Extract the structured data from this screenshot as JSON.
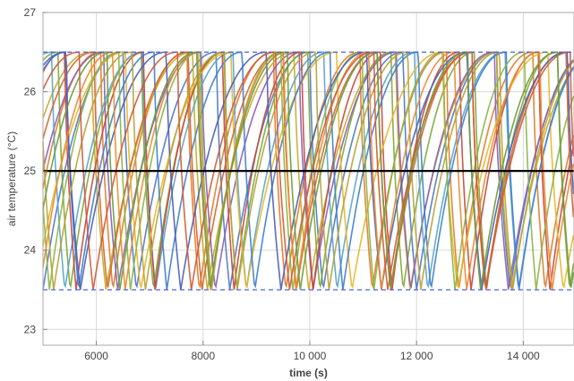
{
  "chart_data": {
    "type": "line",
    "title": "",
    "xlabel": "time (s)",
    "ylabel": "air temperature  (°C)",
    "xlim": [
      5000,
      14950
    ],
    "ylim": [
      22.8,
      27.0
    ],
    "x_ticks": [
      6000,
      8000,
      10000,
      12000,
      14000
    ],
    "x_tick_labels": [
      "6000",
      "8000",
      "10 000",
      "12 000",
      "14 000"
    ],
    "y_ticks": [
      23,
      24,
      25,
      26,
      27
    ],
    "y_tick_labels": [
      "23",
      "24",
      "25",
      "26",
      "27"
    ],
    "grid": true,
    "legend": "none",
    "reference_lines": [
      {
        "kind": "setpoint",
        "y": 25.0,
        "style": "solid",
        "color": "#000000"
      },
      {
        "kind": "upper-bound",
        "y": 26.5,
        "style": "dashed",
        "color": "#4a63d6"
      },
      {
        "kind": "lower-bound",
        "y": 23.5,
        "style": "dashed",
        "color": "#4a63d6"
      }
    ],
    "series_behavior": {
      "low": 23.5,
      "high": 26.5,
      "description_values": "sawtooth: each series rises slowly from 23.5 toward 26.5, then drops quickly back to 23.5"
    },
    "series": [
      {
        "color": "#4e79c5",
        "period": 1750,
        "phase": 0
      },
      {
        "color": "#e37b2a",
        "period": 1620,
        "phase": 310
      },
      {
        "color": "#c9a92a",
        "period": 1900,
        "phase": 720
      },
      {
        "color": "#7fa838",
        "period": 1560,
        "phase": 1050
      },
      {
        "color": "#8a5fb5",
        "period": 1830,
        "phase": 430
      },
      {
        "color": "#5aa6c8",
        "period": 1700,
        "phase": 1290
      },
      {
        "color": "#c8483d",
        "period": 1480,
        "phase": 860
      },
      {
        "color": "#e8b62c",
        "period": 1980,
        "phase": 150
      },
      {
        "color": "#3f7fd0",
        "period": 1650,
        "phase": 980
      },
      {
        "color": "#d4662b",
        "period": 1770,
        "phase": 560
      },
      {
        "color": "#8bb544",
        "period": 1520,
        "phase": 1400
      },
      {
        "color": "#4b5fb8",
        "period": 1880,
        "phase": 1180
      },
      {
        "color": "#ec8a2f",
        "period": 1600,
        "phase": 60
      },
      {
        "color": "#b8a23a",
        "period": 1720,
        "phase": 1520
      },
      {
        "color": "#d05a38",
        "period": 1840,
        "phase": 900
      },
      {
        "color": "#6e9c3c",
        "period": 1690,
        "phase": 250
      }
    ]
  }
}
